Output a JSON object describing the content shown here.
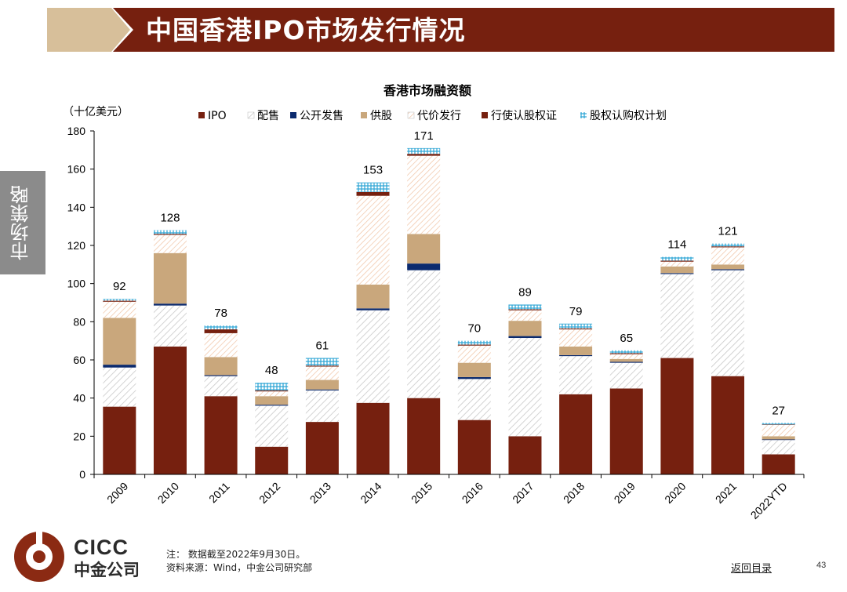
{
  "header": {
    "title": "中国香港IPO市场发行情况"
  },
  "side_tab": {
    "label": "市场策略"
  },
  "footer": {
    "logo_en": "CICC",
    "logo_cn": "中金公司",
    "note": "注：  数据截至2022年9月30日。",
    "source": "资料来源：Wind，中金公司研究部",
    "back_link": "返回目录",
    "page_number": "43"
  },
  "colors": {
    "ipo": "#76200f",
    "placement": "#d8d8d8",
    "open_offer": "#0b2a6e",
    "rights": "#c9a77c",
    "consideration": "#f2c9ad",
    "warrants": "#76200f",
    "share_option": "#2aa3d4",
    "banner": "#76200f",
    "banner_accent": "#d7bf9a"
  },
  "chart_data": {
    "type": "bar",
    "stacked": true,
    "title": "香港市场融资额",
    "ylabel": "（十亿美元）",
    "ylim": [
      0,
      180
    ],
    "yticks": [
      0,
      20,
      40,
      60,
      80,
      100,
      120,
      140,
      160,
      180
    ],
    "legend_position": "top",
    "categories": [
      "2009",
      "2010",
      "2011",
      "2012",
      "2013",
      "2014",
      "2015",
      "2016",
      "2017",
      "2018",
      "2019",
      "2020",
      "2021",
      "2022YTD"
    ],
    "totals": [
      "92",
      "128",
      "78",
      "48",
      "61",
      "153",
      "171",
      "70",
      "89",
      "79",
      "65",
      "114",
      "121",
      "27"
    ],
    "series": [
      {
        "key": "ipo",
        "name": "IPO",
        "values": [
          35.5,
          67,
          41,
          14.5,
          27.5,
          37.5,
          40,
          28.5,
          20,
          42,
          45,
          61,
          51.5,
          10.5
        ]
      },
      {
        "key": "placement",
        "name": "配售",
        "values": [
          20.5,
          21.5,
          10.5,
          21.5,
          16.5,
          48.5,
          67,
          21.5,
          51.5,
          20,
          13.5,
          44,
          55.5,
          7.5
        ]
      },
      {
        "key": "open_offer",
        "name": "公开发售",
        "values": [
          1.5,
          1,
          0.5,
          0.5,
          0.5,
          1,
          3.5,
          1,
          1,
          0.5,
          0.5,
          0.5,
          0.5,
          0.3
        ]
      },
      {
        "key": "rights",
        "name": "供股",
        "values": [
          24.5,
          26.5,
          9.5,
          4.5,
          5,
          12.5,
          15.5,
          7.5,
          8,
          4.5,
          1.5,
          3.5,
          2.5,
          1.7
        ]
      },
      {
        "key": "consideration",
        "name": "代价发行",
        "values": [
          8.5,
          9.5,
          12.5,
          2.5,
          7,
          46.5,
          41,
          9,
          5.5,
          9,
          2.5,
          2.5,
          9,
          6
        ]
      },
      {
        "key": "warrants",
        "name": "行使认股权证",
        "values": [
          0.5,
          0.5,
          2,
          0.5,
          0.5,
          2,
          1,
          0.5,
          0.5,
          0.5,
          0.5,
          0.5,
          0.5,
          0.2
        ]
      },
      {
        "key": "share_option",
        "name": "股权认购权计划",
        "values": [
          1,
          2,
          2,
          4,
          4,
          5,
          3,
          2,
          2.5,
          2.5,
          1.5,
          2,
          1.5,
          0.8
        ]
      }
    ]
  }
}
